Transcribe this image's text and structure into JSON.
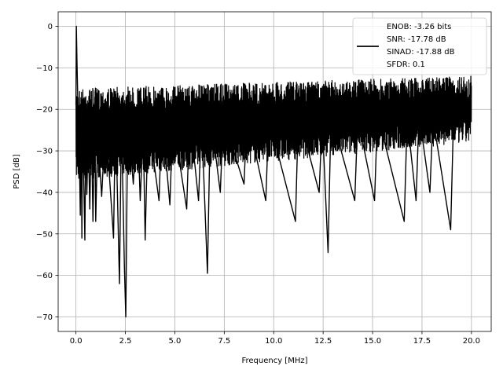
{
  "chart_data": {
    "type": "line",
    "title": "",
    "xlabel": "Frequency [MHz]",
    "ylabel": "PSD [dB]",
    "xlim": [
      -0.9,
      21.0
    ],
    "ylim": [
      -73.5,
      3.5
    ],
    "xticks": [
      0.0,
      2.5,
      5.0,
      7.5,
      10.0,
      12.5,
      15.0,
      17.5,
      20.0
    ],
    "xtick_labels": [
      "0.0",
      "2.5",
      "5.0",
      "7.5",
      "10.0",
      "12.5",
      "15.0",
      "17.5",
      "20.0"
    ],
    "yticks": [
      0,
      -10,
      -20,
      -30,
      -40,
      -50,
      -60,
      -70
    ],
    "ytick_labels": [
      "0",
      "−10",
      "−20",
      "−30",
      "−40",
      "−50",
      "−60",
      "−70"
    ],
    "grid": true,
    "legend_position": "top-right",
    "legend_lines": [
      "ENOB: -3.26 bits",
      "SNR: -17.78 dB",
      "SINAD: -17.88 dB",
      "SFDR: 0.1"
    ],
    "series": [
      {
        "color": "#000000",
        "noise_floor": {
          "x_range": [
            0.0,
            20.0
          ],
          "upper_db": [
            -15.0,
            -12.0
          ],
          "lower_db": [
            -37.0,
            -28.0
          ]
        },
        "points": [
          [
            0.0,
            -19.0
          ],
          [
            0.02,
            0.0
          ],
          [
            0.05,
            -8.0
          ],
          [
            0.08,
            -15.0
          ],
          [
            0.12,
            -22.0
          ],
          [
            0.16,
            -27.0
          ],
          [
            0.22,
            -45.5
          ],
          [
            0.26,
            -20.0
          ],
          [
            0.3,
            -51.0
          ],
          [
            0.34,
            -18.0
          ],
          [
            0.37,
            -30.0
          ],
          [
            0.45,
            -51.5
          ],
          [
            0.5,
            -24.0
          ],
          [
            0.55,
            -40.5
          ],
          [
            0.62,
            -26.0
          ],
          [
            0.7,
            -44.0
          ],
          [
            0.78,
            -23.0
          ],
          [
            0.86,
            -47.0
          ],
          [
            0.95,
            -20.0
          ],
          [
            1.0,
            -47.0
          ],
          [
            1.1,
            -25.0
          ],
          [
            1.3,
            -41.0
          ],
          [
            1.5,
            -22.0
          ],
          [
            1.9,
            -51.0
          ],
          [
            2.0,
            -20.0
          ],
          [
            2.2,
            -62.0
          ],
          [
            2.3,
            -22.0
          ],
          [
            2.45,
            -58.0
          ],
          [
            2.52,
            -70.0
          ],
          [
            2.62,
            -21.0
          ],
          [
            2.9,
            -38.0
          ],
          [
            3.1,
            -20.0
          ],
          [
            3.25,
            -42.0
          ],
          [
            3.4,
            -24.0
          ],
          [
            3.5,
            -51.5
          ],
          [
            3.65,
            -22.0
          ],
          [
            4.2,
            -42.0
          ],
          [
            4.35,
            -21.0
          ],
          [
            4.75,
            -43.0
          ],
          [
            4.9,
            -22.0
          ],
          [
            5.6,
            -44.0
          ],
          [
            5.75,
            -21.0
          ],
          [
            6.2,
            -42.0
          ],
          [
            6.35,
            -22.0
          ],
          [
            6.65,
            -59.5
          ],
          [
            6.8,
            -21.0
          ],
          [
            7.3,
            -40.0
          ],
          [
            7.45,
            -22.0
          ],
          [
            8.5,
            -38.0
          ],
          [
            8.65,
            -21.0
          ],
          [
            9.6,
            -42.0
          ],
          [
            9.75,
            -22.0
          ],
          [
            11.1,
            -47.0
          ],
          [
            11.25,
            -21.0
          ],
          [
            12.3,
            -40.0
          ],
          [
            12.45,
            -22.0
          ],
          [
            12.75,
            -54.5
          ],
          [
            12.9,
            -21.0
          ],
          [
            14.1,
            -42.0
          ],
          [
            14.25,
            -22.0
          ],
          [
            15.1,
            -42.0
          ],
          [
            15.25,
            -21.0
          ],
          [
            16.6,
            -47.0
          ],
          [
            16.75,
            -22.0
          ],
          [
            17.2,
            -42.0
          ],
          [
            17.35,
            -21.0
          ],
          [
            17.9,
            -40.0
          ],
          [
            18.05,
            -22.0
          ],
          [
            18.95,
            -49.0
          ],
          [
            19.1,
            -21.0
          ],
          [
            20.0,
            -23.0
          ]
        ]
      }
    ]
  }
}
